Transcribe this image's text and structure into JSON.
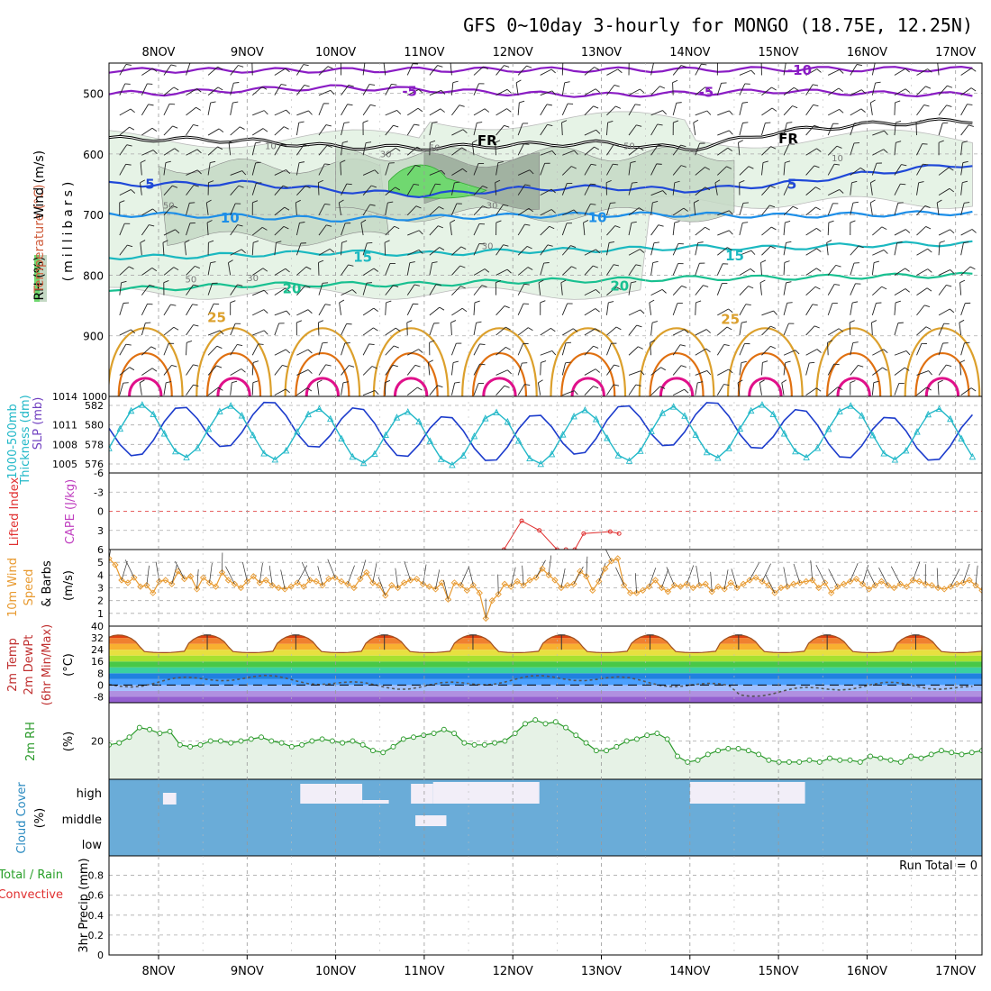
{
  "title": "GFS 0~10day 3-hourly for MONGO (18.75E, 12.25N)",
  "dates": [
    "8NOV",
    "9NOV",
    "10NOV",
    "11NOV",
    "12NOV",
    "13NOV",
    "14NOV",
    "15NOV",
    "16NOV",
    "17NOV"
  ],
  "colors": {
    "purple": "#8a1cc4",
    "black": "#000000",
    "blue": "#1f48d8",
    "lightblue": "#1c8ee8",
    "cyan": "#1ab8c0",
    "teal": "#18c090",
    "orange": "#dca02c",
    "darkorange": "#e07010",
    "magenta": "#e0108a",
    "rhlight": "#e6f3e6",
    "rhmid": "#c4d8c4",
    "rhdark": "#9aaa9a",
    "rhgreen": "#70d870",
    "slp": "#1c3ccc",
    "thick": "#22b8c8",
    "lifted": "#e03030",
    "wind": "#e89a30",
    "rh2m": "#2a9a2a",
    "cloud": "#6aacd8",
    "cloudgap": "#f2eef8"
  },
  "chart_data": [
    {
      "type": "line",
      "name": "upper-air",
      "axis_title_parts": [
        "RH (%)",
        "Temperature (°C)",
        "Wind (m/s)"
      ],
      "y_unit_label": "(millibars)",
      "yticks": [
        500,
        600,
        700,
        800,
        900,
        1000
      ],
      "ylim": [
        450,
        1000
      ],
      "series": [
        {
          "color": "purple",
          "contour": -10,
          "y": [
            462,
            462,
            462,
            461,
            461,
            461,
            461,
            460,
            460,
            460
          ]
        },
        {
          "color": "purple",
          "contour": -5,
          "y": [
            500,
            494,
            490,
            494,
            500,
            503,
            500,
            496,
            500,
            502
          ]
        },
        {
          "color": "black",
          "contour": "FR",
          "y": [
            575,
            578,
            588,
            590,
            585,
            582,
            592,
            563,
            551,
            545
          ]
        },
        {
          "color": "blue",
          "contour": 5,
          "y": [
            650,
            648,
            660,
            668,
            658,
            655,
            660,
            650,
            632,
            618
          ]
        },
        {
          "color": "lightblue",
          "contour": 10,
          "y": [
            700,
            703,
            708,
            705,
            702,
            700,
            700,
            702,
            700,
            697
          ]
        },
        {
          "color": "cyan",
          "contour": 15,
          "y": [
            770,
            766,
            762,
            765,
            760,
            758,
            754,
            755,
            750,
            748
          ]
        },
        {
          "color": "teal",
          "contour": 20,
          "y": [
            822,
            816,
            815,
            815,
            810,
            808,
            805,
            804,
            802,
            800
          ]
        }
      ],
      "contour_labels": [
        "-10",
        "-5",
        "FR",
        "5",
        "10",
        "15",
        "20",
        "25"
      ],
      "rh_labels": [
        "10",
        "30",
        "50",
        "50",
        "30",
        "50",
        "30",
        "50",
        "30",
        "10"
      ],
      "diurnal_contour": {
        "color": "orange",
        "contour": 25
      }
    },
    {
      "type": "line",
      "name": "thickness-slp",
      "axis_titles": [
        "1000-500mb",
        "Thickness (dm)",
        "SLP (mb)"
      ],
      "left_ticks": [
        576,
        578,
        580,
        582
      ],
      "right_ticks": [
        1005,
        1008,
        1011,
        1014
      ],
      "series": [
        {
          "name": "SLP",
          "color": "slp",
          "period_days": 1,
          "mean": 1010,
          "amplitude": 3.5
        },
        {
          "name": "Thickness",
          "color": "thick",
          "period_days": 1,
          "mean": 579,
          "amplitude": 2.7
        }
      ]
    },
    {
      "type": "line",
      "name": "instability",
      "axis_titles": [
        "Lifted Index",
        "CAPE (J/kg)"
      ],
      "yticks": [
        -6,
        -3,
        0,
        3,
        6
      ],
      "x": [
        3.9,
        4.1,
        4.3,
        4.5,
        4.6
      ],
      "y": [
        6,
        1.5,
        3,
        6,
        6
      ],
      "x2": [
        4.7,
        4.8,
        5.1,
        5.2
      ],
      "y2": [
        6,
        3.5,
        3.2,
        3.5
      ],
      "zero_line": 0
    },
    {
      "type": "line",
      "name": "10m-wind",
      "axis_titles": [
        "10m Wind",
        "Speed",
        "& Barbs",
        "(m/s)"
      ],
      "yticks": [
        1,
        2,
        3,
        4,
        5
      ],
      "values": [
        5.3,
        4.8,
        3.6,
        3.4,
        3.8,
        3.1,
        3.2,
        2.6,
        3.5,
        3.6,
        3.3,
        4.3,
        3.7,
        3.9,
        2.9,
        3.8,
        3.4,
        3.1,
        4.2,
        3.6,
        3.3,
        3.0,
        3.5,
        3.9,
        3.4,
        3.6,
        3.2,
        3.0,
        2.9,
        3.1,
        3.4,
        3.1,
        3.6,
        3.5,
        3.2,
        3.7,
        3.8,
        3.5,
        3.3,
        3.0,
        3.7,
        4.2,
        3.4,
        3.2,
        2.4,
        3.2,
        3.0,
        3.4,
        3.6,
        3.7,
        3.3,
        3.1,
        2.9,
        3.4,
        2.1,
        3.4,
        3.2,
        2.8,
        3.2,
        2.6,
        0.6,
        2.0,
        2.5,
        3.3,
        3.1,
        3.5,
        3.2,
        3.6,
        3.8,
        4.5,
        4.0,
        3.6,
        3.0,
        3.2,
        3.3,
        4.3,
        3.9,
        2.8,
        3.5,
        4.5,
        5.1,
        5.3,
        3.2,
        2.6,
        2.6,
        2.8,
        3.1,
        3.6,
        3.0,
        2.7,
        3.2,
        3.1,
        3.3,
        3.0,
        3.2,
        3.3,
        2.7,
        3.1,
        2.9,
        3.4,
        3.0,
        3.3,
        3.6,
        3.8,
        3.5,
        3.2,
        2.6,
        3.0,
        3.1,
        3.3,
        3.4,
        3.5,
        3.6,
        3.0,
        3.4,
        2.6,
        3.1,
        3.3,
        3.5,
        3.7,
        3.3,
        2.9,
        3.2,
        3.5,
        3.2,
        3.0,
        3.3,
        3.1,
        3.6,
        3.5,
        3.3,
        3.2,
        3.0,
        2.9,
        3.1,
        3.3,
        3.4,
        3.6,
        3.2,
        2.8
      ]
    },
    {
      "type": "area",
      "name": "2m-temp",
      "axis_titles": [
        "2m Temp",
        "2m DewPt",
        "(6hr Min/Max)",
        "(°C)"
      ],
      "yticks": [
        -8,
        0,
        8,
        16,
        24,
        32,
        40
      ],
      "temp_max": 34,
      "temp_min": 24,
      "dewpt_mean": 2,
      "band_colors": [
        "#9460d0",
        "#b090e0",
        "#a0c0ff",
        "#4aa0ff",
        "#2080e0",
        "#3ad0a0",
        "#48c848",
        "#a8e030",
        "#e8e040",
        "#f8b030",
        "#f08030",
        "#e04010"
      ]
    },
    {
      "type": "area",
      "name": "2m-rh",
      "axis_titles": [
        "2m RH",
        "(%)"
      ],
      "yticks": [
        20
      ],
      "values": [
        18,
        19,
        22,
        27,
        26,
        24,
        25,
        18,
        17,
        18,
        20,
        20,
        19,
        20,
        21,
        22,
        20,
        19,
        17,
        18,
        20,
        21,
        20,
        19,
        20,
        18,
        15,
        14,
        17,
        21,
        22,
        23,
        24,
        26,
        24,
        19,
        18,
        18,
        19,
        20,
        24,
        29,
        31,
        29,
        30,
        27,
        23,
        19,
        15,
        15,
        17,
        20,
        21,
        23,
        24,
        21,
        12,
        9,
        10,
        13,
        15,
        16,
        16,
        15,
        13,
        10,
        9,
        9,
        9,
        10,
        9,
        11,
        10,
        10,
        9,
        12,
        11,
        10,
        9,
        12,
        11,
        13,
        15,
        14,
        13,
        14,
        15
      ]
    },
    {
      "type": "heatmap",
      "name": "cloud-cover",
      "axis_titles": [
        "Cloud Cover",
        "(%)"
      ],
      "levels": [
        "high",
        "middle",
        "low"
      ]
    },
    {
      "type": "bar",
      "name": "precip",
      "axis_titles": [
        "3hr Precip (mm)",
        "Total / Rain",
        "Convective"
      ],
      "yticks": [
        0,
        0.2,
        0.4,
        0.6,
        0.8
      ],
      "values": [],
      "run_total": "Run Total = 0"
    }
  ]
}
